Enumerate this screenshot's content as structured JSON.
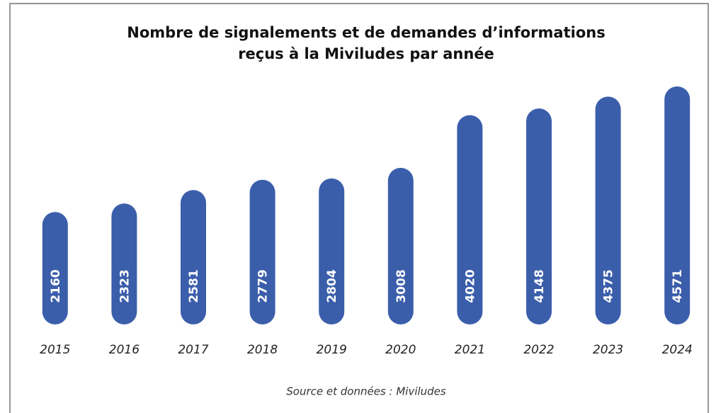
{
  "chart_data": {
    "type": "bar",
    "title": [
      "Nombre de signalements et de demandes d’informations",
      "reçus à la Miviludes par année"
    ],
    "categories": [
      "2015",
      "2016",
      "2017",
      "2018",
      "2019",
      "2020",
      "2021",
      "2022",
      "2023",
      "2024"
    ],
    "values": [
      2160,
      2323,
      2581,
      2779,
      2804,
      3008,
      4020,
      4148,
      4375,
      4571
    ],
    "color": "#3b5eab",
    "source": "Source et données : Miviludes"
  }
}
